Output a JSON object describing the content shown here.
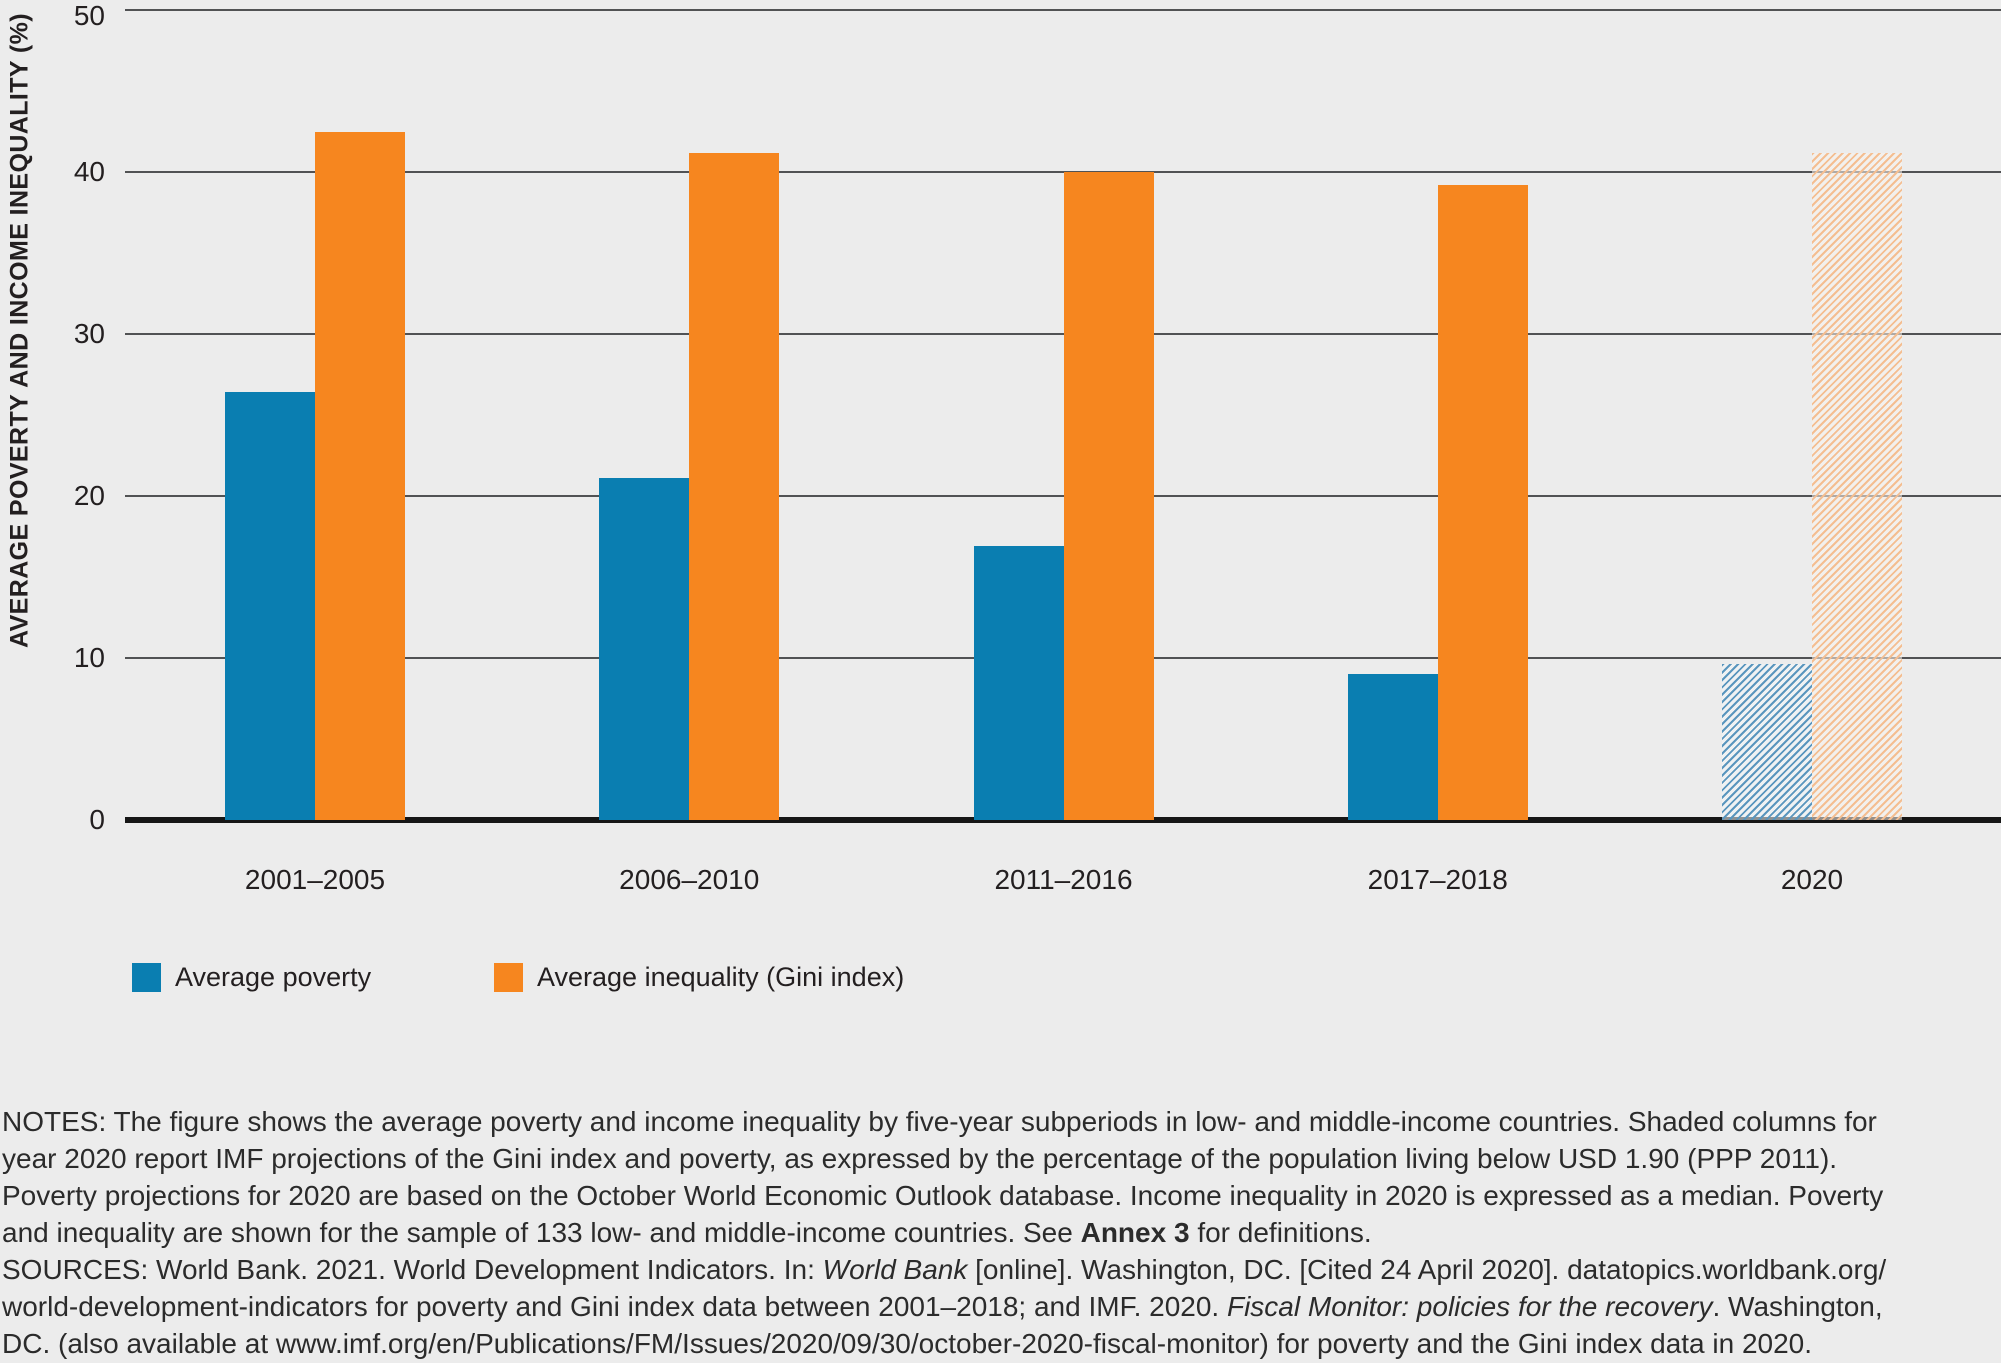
{
  "figure": {
    "y_axis_label": "AVERAGE POVERTY AND INCOME INEQUALITY (%)"
  },
  "chart_data": {
    "type": "bar",
    "categories": [
      "2001–2005",
      "2006–2010",
      "2011–2016",
      "2017–2018",
      "2020"
    ],
    "series": [
      {
        "name": "Average poverty",
        "color": "#0a7eb1",
        "hatch_line_color": "#5a96be",
        "hatch_gap_color": "rgba(244,247,249,0.55)",
        "values": [
          26.4,
          21.1,
          16.9,
          9.0,
          9.6
        ]
      },
      {
        "name": "Average inequality (Gini index)",
        "color": "#f6861f",
        "hatch_line_color": "#f4be91",
        "hatch_gap_color": "rgba(248,243,238,0.55)",
        "values": [
          42.5,
          41.2,
          40.0,
          39.2,
          41.2
        ]
      }
    ],
    "title": "",
    "xlabel": "",
    "ylabel": "AVERAGE POVERTY AND INCOME INEQUALITY (%)",
    "ylim": [
      0,
      50
    ],
    "yticks": [
      0,
      10,
      20,
      30,
      40,
      50
    ],
    "grid": true,
    "legend_position": "bottom-left",
    "shaded_category": "2020"
  },
  "legend": {
    "items": [
      {
        "label": "Average poverty",
        "color": "#0a7eb1"
      },
      {
        "label": "Average inequality (Gini index)",
        "color": "#f6861f"
      }
    ]
  },
  "notes": {
    "lines": [
      {
        "parts": [
          "NOTES: The figure shows the average poverty and income inequality by five-year subperiods in low- and middle-income countries. Shaded columns for"
        ]
      },
      {
        "parts": [
          "year 2020 report IMF projections of the Gini index and poverty, as expressed by the percentage of the population living below USD 1.90 (PPP 2011)."
        ]
      },
      {
        "parts": [
          "Poverty projections for 2020 are based on the October World Economic Outlook database. Income inequality in 2020 is expressed as a median. Poverty"
        ]
      },
      {
        "parts": [
          "and inequality are shown for the sample of 133 low- and middle-income countries. See ",
          "Annex 3",
          " for definitions."
        ]
      },
      {
        "parts": [
          "SOURCES: World Bank. 2021. World Development Indicators. In: ",
          "World Bank",
          " [online]. Washington, DC. [Cited 24 April 2020]. datatopics.worldbank.org/"
        ]
      },
      {
        "parts": [
          "world-development-indicators for poverty and Gini index data between 2001–2018; and IMF. 2020. ",
          "Fiscal Monitor: policies for the recovery",
          ". Washington,"
        ]
      },
      {
        "parts": [
          "DC. (also available at www.imf.org/en/Publications/FM/Issues/2020/09/30/october-2020-fiscal-monitor) for poverty and the Gini index data in 2020."
        ]
      }
    ]
  }
}
